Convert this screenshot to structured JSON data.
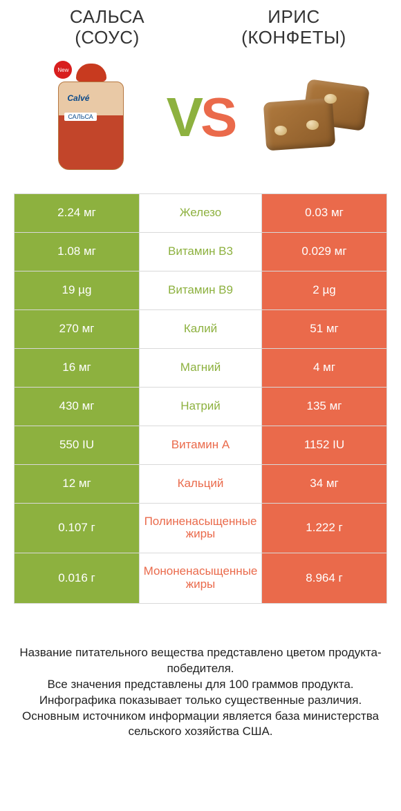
{
  "colors": {
    "left_win": "#8db13f",
    "right_win": "#ea6a4b",
    "cell_border": "#d9d9d9",
    "text_dark": "#333333"
  },
  "products": {
    "left": {
      "title_line1": "САЛЬСА",
      "title_line2": "(СОУС)",
      "brand": "Calvé",
      "sublabel": "САЛЬСА",
      "badge": "New"
    },
    "right": {
      "title_line1": "ИРИС",
      "title_line2": "(КОНФЕТЫ)"
    }
  },
  "vs": {
    "v": "V",
    "s": "S"
  },
  "rows": [
    {
      "left": "2.24 мг",
      "label": "Железо",
      "right": "0.03 мг",
      "winner": "left",
      "tall": false
    },
    {
      "left": "1.08 мг",
      "label": "Витамин B3",
      "right": "0.029 мг",
      "winner": "left",
      "tall": false
    },
    {
      "left": "19 µg",
      "label": "Витамин B9",
      "right": "2 µg",
      "winner": "left",
      "tall": false
    },
    {
      "left": "270 мг",
      "label": "Калий",
      "right": "51 мг",
      "winner": "left",
      "tall": false
    },
    {
      "left": "16 мг",
      "label": "Магний",
      "right": "4 мг",
      "winner": "left",
      "tall": false
    },
    {
      "left": "430 мг",
      "label": "Натрий",
      "right": "135 мг",
      "winner": "left",
      "tall": false
    },
    {
      "left": "550 IU",
      "label": "Витамин A",
      "right": "1152 IU",
      "winner": "right",
      "tall": false
    },
    {
      "left": "12 мг",
      "label": "Кальций",
      "right": "34 мг",
      "winner": "right",
      "tall": false
    },
    {
      "left": "0.107 г",
      "label": "Полиненасыщенные жиры",
      "right": "1.222 г",
      "winner": "right",
      "tall": true
    },
    {
      "left": "0.016 г",
      "label": "Мононенасыщенные жиры",
      "right": "8.964 г",
      "winner": "right",
      "tall": true
    }
  ],
  "footer": {
    "l1": "Название питательного вещества представлено цветом продукта-победителя.",
    "l2": "Все значения представлены для 100 граммов продукта.",
    "l3": "Инфографика показывает только существенные различия.",
    "l4": "Основным источником информации является база министерства сельского хозяйства США."
  }
}
